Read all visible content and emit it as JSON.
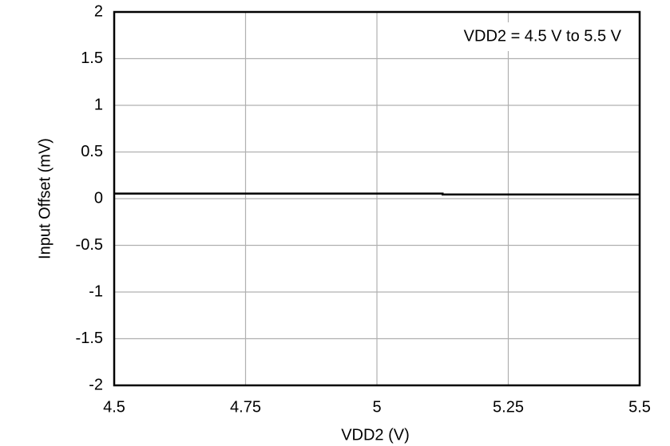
{
  "chart_data": {
    "type": "line",
    "xlabel": "VDD2 (V)",
    "ylabel": "Input Offset (mV)",
    "annotation": "VDD2 = 4.5 V to 5.5 V",
    "x": [
      4.5,
      5.125,
      5.125,
      5.5
    ],
    "series": [
      {
        "color": "#000000",
        "values": [
          0.055,
          0.055,
          0.045,
          0.045
        ]
      }
    ],
    "xlim": [
      4.5,
      5.5
    ],
    "xticks": [
      4.5,
      4.75,
      5,
      5.25,
      5.5
    ],
    "ylim": [
      -2,
      2
    ],
    "yticks": [
      -2,
      -1.5,
      -1,
      -0.5,
      0,
      0.5,
      1,
      1.5,
      2
    ],
    "grid": true
  }
}
